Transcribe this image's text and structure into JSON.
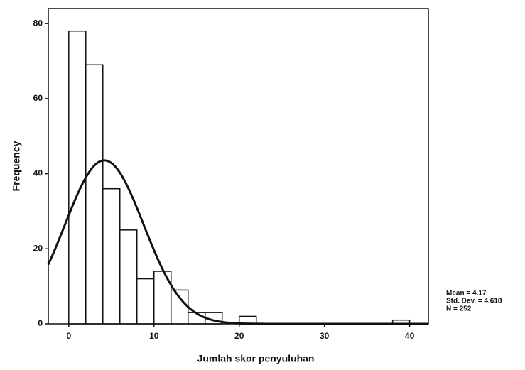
{
  "chart_data": {
    "type": "histogram",
    "xlabel": "Jumlah skor penyuluhan",
    "ylabel": "Frequency",
    "bins": [
      0,
      2,
      4,
      6,
      8,
      10,
      12,
      14,
      16,
      18,
      20,
      22,
      24,
      26,
      28,
      30,
      32,
      34,
      36,
      38,
      40
    ],
    "values": [
      78,
      69,
      36,
      25,
      12,
      14,
      9,
      3,
      3,
      0,
      2,
      0,
      0,
      0,
      0,
      0,
      0,
      0,
      0,
      1
    ],
    "color": "#ffffff",
    "curve_color": "#111111",
    "xlim": [
      -2.4,
      42.2
    ],
    "ylim": [
      0,
      84
    ],
    "xticks": [
      0,
      10,
      20,
      30,
      40
    ],
    "yticks": [
      0,
      20,
      40,
      60,
      80
    ],
    "stats": [
      {
        "value": 4.17,
        "label": "Mean = 4.17"
      },
      {
        "value": 4.618,
        "label": "Std. Dev. = 4.618"
      },
      {
        "value": 252,
        "label": "N = 252"
      }
    ]
  }
}
